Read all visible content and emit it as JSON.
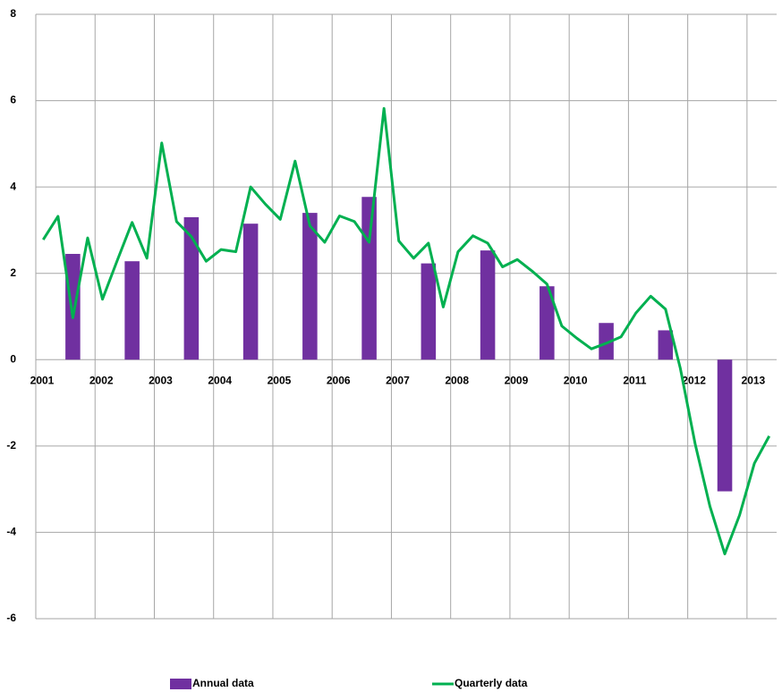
{
  "chart_data": {
    "type": "combo",
    "xlim": [
      2001,
      2013.5
    ],
    "xticks": [
      2001,
      2002,
      2003,
      2004,
      2005,
      2006,
      2007,
      2008,
      2009,
      2010,
      2011,
      2012,
      2013
    ],
    "ylim": [
      -6,
      8
    ],
    "yticks": [
      -6,
      -4,
      -2,
      0,
      2,
      4,
      6,
      8
    ],
    "grid": true,
    "legend": "bottom",
    "series": [
      {
        "name": "Annual data",
        "type": "bar",
        "color": "#7030a0",
        "x": [
          2001.625,
          2002.625,
          2003.625,
          2004.625,
          2005.625,
          2006.625,
          2007.625,
          2008.625,
          2009.625,
          2010.625,
          2011.625,
          2012.625
        ],
        "values": [
          2.45,
          2.28,
          3.3,
          3.15,
          3.4,
          3.77,
          2.23,
          2.53,
          1.7,
          0.85,
          0.68,
          -3.05
        ]
      },
      {
        "name": "Quarterly data",
        "type": "line",
        "color": "#00b050",
        "x": [
          2001.125,
          2001.375,
          2001.625,
          2001.875,
          2002.125,
          2002.375,
          2002.625,
          2002.875,
          2003.125,
          2003.375,
          2003.625,
          2003.875,
          2004.125,
          2004.375,
          2004.625,
          2004.875,
          2005.125,
          2005.375,
          2005.625,
          2005.875,
          2006.125,
          2006.375,
          2006.625,
          2006.875,
          2007.125,
          2007.375,
          2007.625,
          2007.875,
          2008.125,
          2008.375,
          2008.625,
          2008.875,
          2009.125,
          2009.375,
          2009.625,
          2009.875,
          2010.125,
          2010.375,
          2010.625,
          2010.875,
          2011.125,
          2011.375,
          2011.625,
          2011.875,
          2012.125,
          2012.375,
          2012.625,
          2012.875,
          2013.125,
          2013.375
        ],
        "values": [
          2.78,
          3.32,
          0.97,
          2.82,
          1.4,
          2.3,
          3.18,
          2.35,
          5.02,
          3.2,
          2.85,
          2.28,
          2.55,
          2.5,
          4.0,
          3.6,
          3.25,
          4.6,
          3.1,
          2.72,
          3.33,
          3.2,
          2.72,
          5.82,
          2.75,
          2.35,
          2.7,
          1.22,
          2.5,
          2.87,
          2.7,
          2.15,
          2.32,
          2.05,
          1.75,
          0.78,
          0.5,
          0.25,
          0.38,
          0.53,
          1.08,
          1.47,
          1.17,
          -0.2,
          -1.95,
          -3.4,
          -4.5,
          -3.6,
          -2.4,
          -1.77
        ]
      }
    ]
  }
}
